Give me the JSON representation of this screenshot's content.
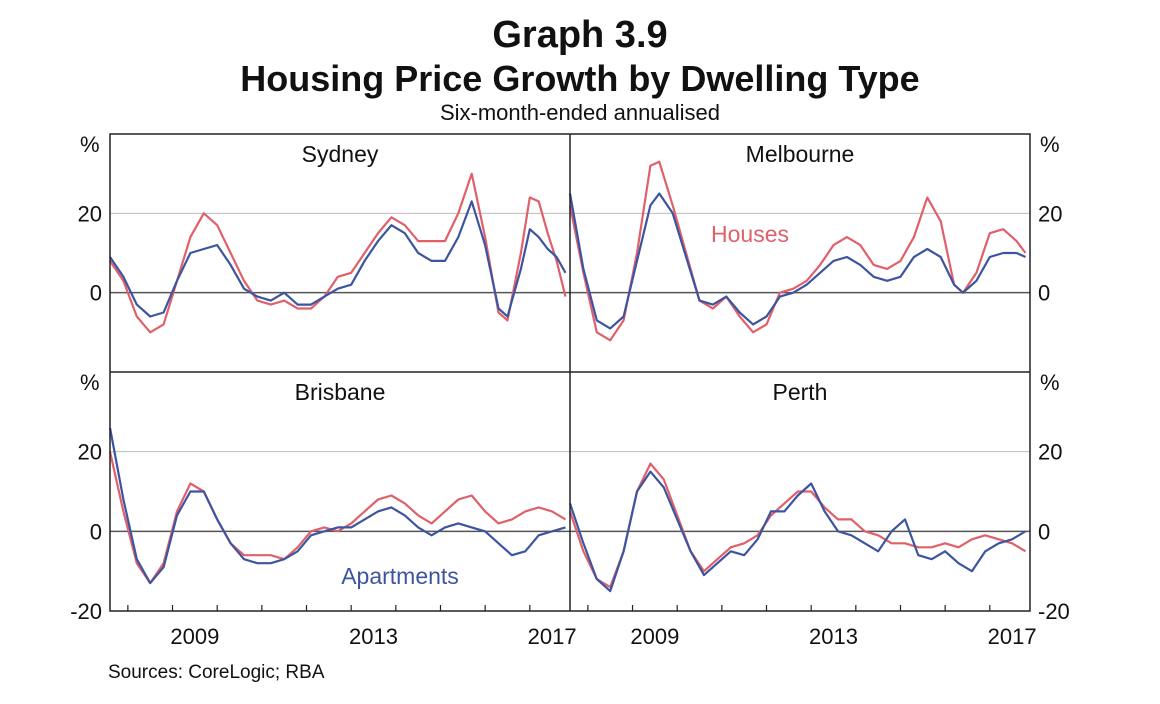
{
  "title": "Graph 3.9",
  "main_title": "Housing Price Growth by Dwelling Type",
  "subtitle": "Six-month-ended annualised",
  "sources": "Sources: CoreLogic; RBA",
  "colors": {
    "houses": "#e0606a",
    "apartments": "#3d55a0",
    "grid": "#bdbdbd",
    "axis": "#222222"
  },
  "chart_data": {
    "type": "line",
    "unit": "%",
    "ylim": [
      -20,
      40
    ],
    "y_ticks": [
      -20,
      0,
      20
    ],
    "x_ticks": [
      "2009",
      "2013",
      "2017"
    ],
    "x_range": [
      2007.6,
      2017.9
    ],
    "legend": [
      {
        "name": "Houses",
        "panel": "Melbourne",
        "color": "#e0606a"
      },
      {
        "name": "Apartments",
        "panel": "Brisbane",
        "color": "#3d55a0"
      }
    ],
    "panels": [
      {
        "name": "Sydney",
        "houses": [
          [
            2007.6,
            8
          ],
          [
            2007.9,
            3
          ],
          [
            2008.2,
            -6
          ],
          [
            2008.5,
            -10
          ],
          [
            2008.8,
            -8
          ],
          [
            2009.1,
            3
          ],
          [
            2009.4,
            14
          ],
          [
            2009.7,
            20
          ],
          [
            2010.0,
            17
          ],
          [
            2010.3,
            10
          ],
          [
            2010.6,
            3
          ],
          [
            2010.9,
            -2
          ],
          [
            2011.2,
            -3
          ],
          [
            2011.5,
            -2
          ],
          [
            2011.8,
            -4
          ],
          [
            2012.1,
            -4
          ],
          [
            2012.4,
            -1
          ],
          [
            2012.7,
            4
          ],
          [
            2013.0,
            5
          ],
          [
            2013.3,
            10
          ],
          [
            2013.6,
            15
          ],
          [
            2013.9,
            19
          ],
          [
            2014.2,
            17
          ],
          [
            2014.5,
            13
          ],
          [
            2014.8,
            13
          ],
          [
            2015.1,
            13
          ],
          [
            2015.4,
            20
          ],
          [
            2015.7,
            30
          ],
          [
            2016.0,
            14
          ],
          [
            2016.3,
            -5
          ],
          [
            2016.5,
            -7
          ],
          [
            2016.8,
            10
          ],
          [
            2017.0,
            24
          ],
          [
            2017.2,
            23
          ],
          [
            2017.4,
            15
          ],
          [
            2017.6,
            8
          ],
          [
            2017.8,
            -1
          ]
        ],
        "apartments": [
          [
            2007.6,
            9
          ],
          [
            2007.9,
            4
          ],
          [
            2008.2,
            -3
          ],
          [
            2008.5,
            -6
          ],
          [
            2008.8,
            -5
          ],
          [
            2009.1,
            3
          ],
          [
            2009.4,
            10
          ],
          [
            2009.7,
            11
          ],
          [
            2010.0,
            12
          ],
          [
            2010.3,
            7
          ],
          [
            2010.6,
            1
          ],
          [
            2010.9,
            -1
          ],
          [
            2011.2,
            -2
          ],
          [
            2011.5,
            0
          ],
          [
            2011.8,
            -3
          ],
          [
            2012.1,
            -3
          ],
          [
            2012.4,
            -1
          ],
          [
            2012.7,
            1
          ],
          [
            2013.0,
            2
          ],
          [
            2013.3,
            8
          ],
          [
            2013.6,
            13
          ],
          [
            2013.9,
            17
          ],
          [
            2014.2,
            15
          ],
          [
            2014.5,
            10
          ],
          [
            2014.8,
            8
          ],
          [
            2015.1,
            8
          ],
          [
            2015.4,
            14
          ],
          [
            2015.7,
            23
          ],
          [
            2016.0,
            12
          ],
          [
            2016.3,
            -4
          ],
          [
            2016.5,
            -6
          ],
          [
            2016.8,
            6
          ],
          [
            2017.0,
            16
          ],
          [
            2017.2,
            14
          ],
          [
            2017.4,
            11
          ],
          [
            2017.6,
            9
          ],
          [
            2017.8,
            5
          ]
        ]
      },
      {
        "name": "Melbourne",
        "houses": [
          [
            2007.6,
            22
          ],
          [
            2007.9,
            5
          ],
          [
            2008.2,
            -10
          ],
          [
            2008.5,
            -12
          ],
          [
            2008.8,
            -7
          ],
          [
            2009.1,
            10
          ],
          [
            2009.4,
            32
          ],
          [
            2009.6,
            33
          ],
          [
            2009.9,
            22
          ],
          [
            2010.2,
            10
          ],
          [
            2010.5,
            -2
          ],
          [
            2010.8,
            -4
          ],
          [
            2011.1,
            -1
          ],
          [
            2011.4,
            -6
          ],
          [
            2011.7,
            -10
          ],
          [
            2012.0,
            -8
          ],
          [
            2012.3,
            0
          ],
          [
            2012.6,
            1
          ],
          [
            2012.9,
            3
          ],
          [
            2013.2,
            7
          ],
          [
            2013.5,
            12
          ],
          [
            2013.8,
            14
          ],
          [
            2014.1,
            12
          ],
          [
            2014.4,
            7
          ],
          [
            2014.7,
            6
          ],
          [
            2015.0,
            8
          ],
          [
            2015.3,
            14
          ],
          [
            2015.6,
            24
          ],
          [
            2015.9,
            18
          ],
          [
            2016.2,
            2
          ],
          [
            2016.4,
            0
          ],
          [
            2016.7,
            5
          ],
          [
            2017.0,
            15
          ],
          [
            2017.3,
            16
          ],
          [
            2017.6,
            13
          ],
          [
            2017.8,
            10
          ]
        ],
        "apartments": [
          [
            2007.6,
            25
          ],
          [
            2007.9,
            6
          ],
          [
            2008.2,
            -7
          ],
          [
            2008.5,
            -9
          ],
          [
            2008.8,
            -6
          ],
          [
            2009.1,
            8
          ],
          [
            2009.4,
            22
          ],
          [
            2009.6,
            25
          ],
          [
            2009.9,
            20
          ],
          [
            2010.2,
            9
          ],
          [
            2010.5,
            -2
          ],
          [
            2010.8,
            -3
          ],
          [
            2011.1,
            -1
          ],
          [
            2011.4,
            -5
          ],
          [
            2011.7,
            -8
          ],
          [
            2012.0,
            -6
          ],
          [
            2012.3,
            -1
          ],
          [
            2012.6,
            0
          ],
          [
            2012.9,
            2
          ],
          [
            2013.2,
            5
          ],
          [
            2013.5,
            8
          ],
          [
            2013.8,
            9
          ],
          [
            2014.1,
            7
          ],
          [
            2014.4,
            4
          ],
          [
            2014.7,
            3
          ],
          [
            2015.0,
            4
          ],
          [
            2015.3,
            9
          ],
          [
            2015.6,
            11
          ],
          [
            2015.9,
            9
          ],
          [
            2016.2,
            2
          ],
          [
            2016.4,
            0
          ],
          [
            2016.7,
            3
          ],
          [
            2017.0,
            9
          ],
          [
            2017.3,
            10
          ],
          [
            2017.6,
            10
          ],
          [
            2017.8,
            9
          ]
        ]
      },
      {
        "name": "Brisbane",
        "houses": [
          [
            2007.6,
            20
          ],
          [
            2007.9,
            5
          ],
          [
            2008.2,
            -8
          ],
          [
            2008.5,
            -13
          ],
          [
            2008.8,
            -8
          ],
          [
            2009.1,
            5
          ],
          [
            2009.4,
            12
          ],
          [
            2009.7,
            10
          ],
          [
            2010.0,
            3
          ],
          [
            2010.3,
            -3
          ],
          [
            2010.6,
            -6
          ],
          [
            2010.9,
            -6
          ],
          [
            2011.2,
            -6
          ],
          [
            2011.5,
            -7
          ],
          [
            2011.8,
            -4
          ],
          [
            2012.1,
            0
          ],
          [
            2012.4,
            1
          ],
          [
            2012.7,
            0
          ],
          [
            2013.0,
            2
          ],
          [
            2013.3,
            5
          ],
          [
            2013.6,
            8
          ],
          [
            2013.9,
            9
          ],
          [
            2014.2,
            7
          ],
          [
            2014.5,
            4
          ],
          [
            2014.8,
            2
          ],
          [
            2015.1,
            5
          ],
          [
            2015.4,
            8
          ],
          [
            2015.7,
            9
          ],
          [
            2016.0,
            5
          ],
          [
            2016.3,
            2
          ],
          [
            2016.6,
            3
          ],
          [
            2016.9,
            5
          ],
          [
            2017.2,
            6
          ],
          [
            2017.5,
            5
          ],
          [
            2017.8,
            3
          ]
        ],
        "apartments": [
          [
            2007.6,
            26
          ],
          [
            2007.9,
            8
          ],
          [
            2008.2,
            -7
          ],
          [
            2008.5,
            -13
          ],
          [
            2008.8,
            -9
          ],
          [
            2009.1,
            4
          ],
          [
            2009.4,
            10
          ],
          [
            2009.7,
            10
          ],
          [
            2010.0,
            3
          ],
          [
            2010.3,
            -3
          ],
          [
            2010.6,
            -7
          ],
          [
            2010.9,
            -8
          ],
          [
            2011.2,
            -8
          ],
          [
            2011.5,
            -7
          ],
          [
            2011.8,
            -5
          ],
          [
            2012.1,
            -1
          ],
          [
            2012.4,
            0
          ],
          [
            2012.7,
            1
          ],
          [
            2013.0,
            1
          ],
          [
            2013.3,
            3
          ],
          [
            2013.6,
            5
          ],
          [
            2013.9,
            6
          ],
          [
            2014.2,
            4
          ],
          [
            2014.5,
            1
          ],
          [
            2014.8,
            -1
          ],
          [
            2015.1,
            1
          ],
          [
            2015.4,
            2
          ],
          [
            2015.7,
            1
          ],
          [
            2016.0,
            0
          ],
          [
            2016.3,
            -3
          ],
          [
            2016.6,
            -6
          ],
          [
            2016.9,
            -5
          ],
          [
            2017.2,
            -1
          ],
          [
            2017.5,
            0
          ],
          [
            2017.8,
            1
          ]
        ]
      },
      {
        "name": "Perth",
        "houses": [
          [
            2007.6,
            5
          ],
          [
            2007.9,
            -5
          ],
          [
            2008.2,
            -12
          ],
          [
            2008.5,
            -14
          ],
          [
            2008.8,
            -5
          ],
          [
            2009.1,
            10
          ],
          [
            2009.4,
            17
          ],
          [
            2009.7,
            13
          ],
          [
            2010.0,
            4
          ],
          [
            2010.3,
            -5
          ],
          [
            2010.6,
            -10
          ],
          [
            2010.9,
            -7
          ],
          [
            2011.2,
            -4
          ],
          [
            2011.5,
            -3
          ],
          [
            2011.8,
            -1
          ],
          [
            2012.1,
            4
          ],
          [
            2012.4,
            7
          ],
          [
            2012.7,
            10
          ],
          [
            2013.0,
            10
          ],
          [
            2013.3,
            6
          ],
          [
            2013.6,
            3
          ],
          [
            2013.9,
            3
          ],
          [
            2014.2,
            0
          ],
          [
            2014.5,
            -1
          ],
          [
            2014.8,
            -3
          ],
          [
            2015.1,
            -3
          ],
          [
            2015.4,
            -4
          ],
          [
            2015.7,
            -4
          ],
          [
            2016.0,
            -3
          ],
          [
            2016.3,
            -4
          ],
          [
            2016.6,
            -2
          ],
          [
            2016.9,
            -1
          ],
          [
            2017.2,
            -2
          ],
          [
            2017.5,
            -3
          ],
          [
            2017.8,
            -5
          ]
        ],
        "apartments": [
          [
            2007.6,
            7
          ],
          [
            2007.9,
            -3
          ],
          [
            2008.2,
            -12
          ],
          [
            2008.5,
            -15
          ],
          [
            2008.8,
            -5
          ],
          [
            2009.1,
            10
          ],
          [
            2009.4,
            15
          ],
          [
            2009.7,
            11
          ],
          [
            2010.0,
            3
          ],
          [
            2010.3,
            -5
          ],
          [
            2010.6,
            -11
          ],
          [
            2010.9,
            -8
          ],
          [
            2011.2,
            -5
          ],
          [
            2011.5,
            -6
          ],
          [
            2011.8,
            -2
          ],
          [
            2012.1,
            5
          ],
          [
            2012.4,
            5
          ],
          [
            2012.7,
            9
          ],
          [
            2013.0,
            12
          ],
          [
            2013.3,
            5
          ],
          [
            2013.6,
            0
          ],
          [
            2013.9,
            -1
          ],
          [
            2014.2,
            -3
          ],
          [
            2014.5,
            -5
          ],
          [
            2014.8,
            0
          ],
          [
            2015.1,
            3
          ],
          [
            2015.4,
            -6
          ],
          [
            2015.7,
            -7
          ],
          [
            2016.0,
            -5
          ],
          [
            2016.3,
            -8
          ],
          [
            2016.6,
            -10
          ],
          [
            2016.9,
            -5
          ],
          [
            2017.2,
            -3
          ],
          [
            2017.5,
            -2
          ],
          [
            2017.8,
            0
          ]
        ]
      }
    ]
  }
}
